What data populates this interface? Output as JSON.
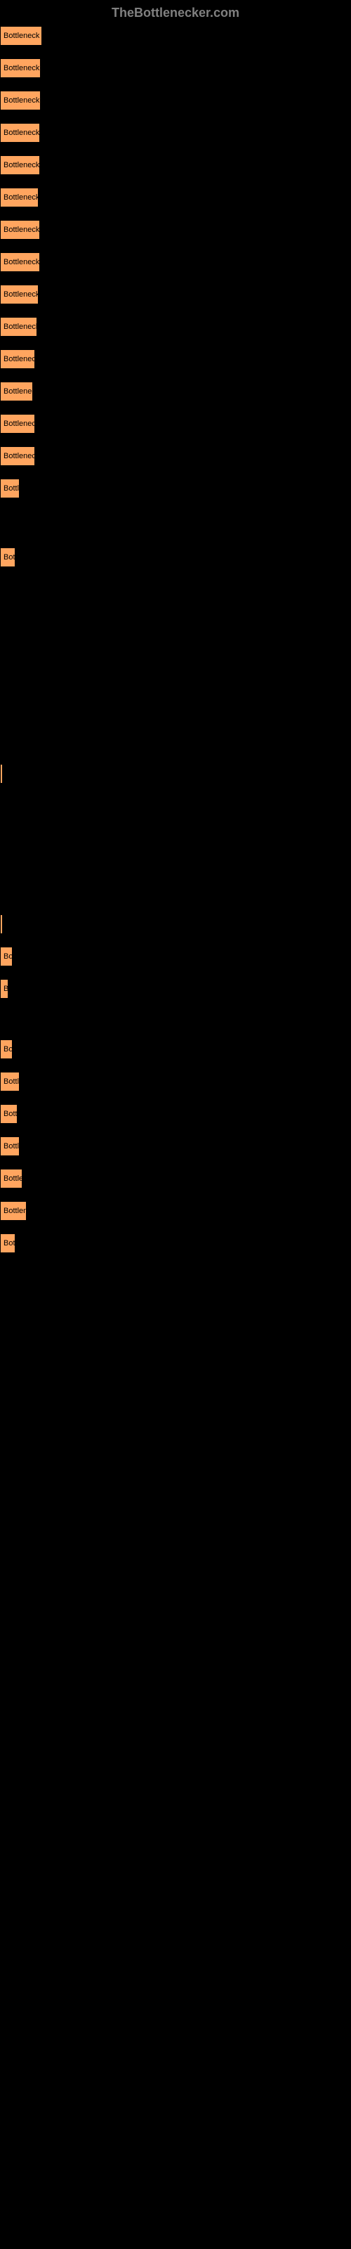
{
  "header": {
    "title": "TheBottlenecker.com"
  },
  "chart": {
    "type": "bar",
    "background_color": "#000000",
    "bar_color": "#ffa55f",
    "bar_border_color": "#000000",
    "text_color": "#000000",
    "font_size": 11,
    "bars": [
      {
        "label": "Bottleneck res",
        "width": 60,
        "gap": 18
      },
      {
        "label": "Bottleneck re",
        "width": 58,
        "gap": 18
      },
      {
        "label": "Bottleneck re",
        "width": 58,
        "gap": 18
      },
      {
        "label": "Bottleneck re",
        "width": 57,
        "gap": 18
      },
      {
        "label": "Bottleneck re",
        "width": 57,
        "gap": 18
      },
      {
        "label": "Bottleneck r",
        "width": 55,
        "gap": 18
      },
      {
        "label": "Bottleneck re",
        "width": 57,
        "gap": 18
      },
      {
        "label": "Bottleneck re",
        "width": 57,
        "gap": 18
      },
      {
        "label": "Bottleneck r",
        "width": 55,
        "gap": 18
      },
      {
        "label": "Bottleneck e",
        "width": 53,
        "gap": 18
      },
      {
        "label": "Bottleneck",
        "width": 50,
        "gap": 18
      },
      {
        "label": "Bottlenec",
        "width": 47,
        "gap": 18
      },
      {
        "label": "Bottleneck",
        "width": 50,
        "gap": 18
      },
      {
        "label": "Bottleneck",
        "width": 50,
        "gap": 18
      },
      {
        "label": "Bottl",
        "width": 28,
        "gap": 70
      },
      {
        "label": "Bot",
        "width": 22,
        "gap": 280
      },
      {
        "label": "",
        "width": 4,
        "gap": 186
      },
      {
        "label": "",
        "width": 4,
        "gap": 18
      },
      {
        "label": "Bo",
        "width": 18,
        "gap": 18
      },
      {
        "label": "B",
        "width": 12,
        "gap": 58
      },
      {
        "label": "Bo",
        "width": 18,
        "gap": 18
      },
      {
        "label": "Bottl",
        "width": 28,
        "gap": 18
      },
      {
        "label": "Bott",
        "width": 25,
        "gap": 18
      },
      {
        "label": "Bottl",
        "width": 28,
        "gap": 18
      },
      {
        "label": "Bottle",
        "width": 32,
        "gap": 18
      },
      {
        "label": "Bottlen",
        "width": 38,
        "gap": 18
      },
      {
        "label": "Bot",
        "width": 22,
        "gap": 18
      }
    ]
  }
}
